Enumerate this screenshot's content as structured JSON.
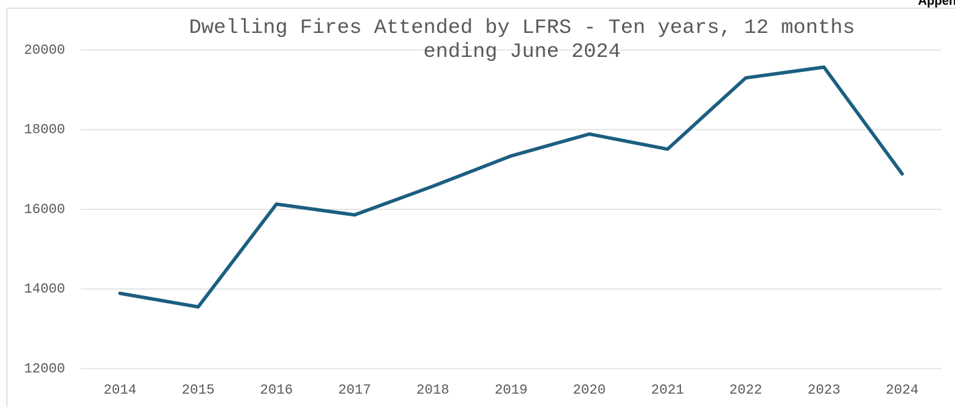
{
  "chart_data": {
    "type": "line",
    "title": "Dwelling Fires Attended by LFRS - Ten years, 12 months ending June 2024",
    "corner_label": "Appendix",
    "categories": [
      "2014",
      "2015",
      "2016",
      "2017",
      "2018",
      "2019",
      "2020",
      "2021",
      "2022",
      "2023",
      "2024"
    ],
    "series": [
      {
        "name": "Dwelling Fires",
        "color": "#1b5e80",
        "values": [
          13890,
          13550,
          16130,
          15860,
          16580,
          17340,
          17890,
          17510,
          19300,
          19570,
          16890
        ]
      }
    ],
    "ylim": [
      12000,
      20000
    ],
    "yticks": [
      12000,
      14000,
      16000,
      18000,
      20000
    ],
    "grid": true
  }
}
